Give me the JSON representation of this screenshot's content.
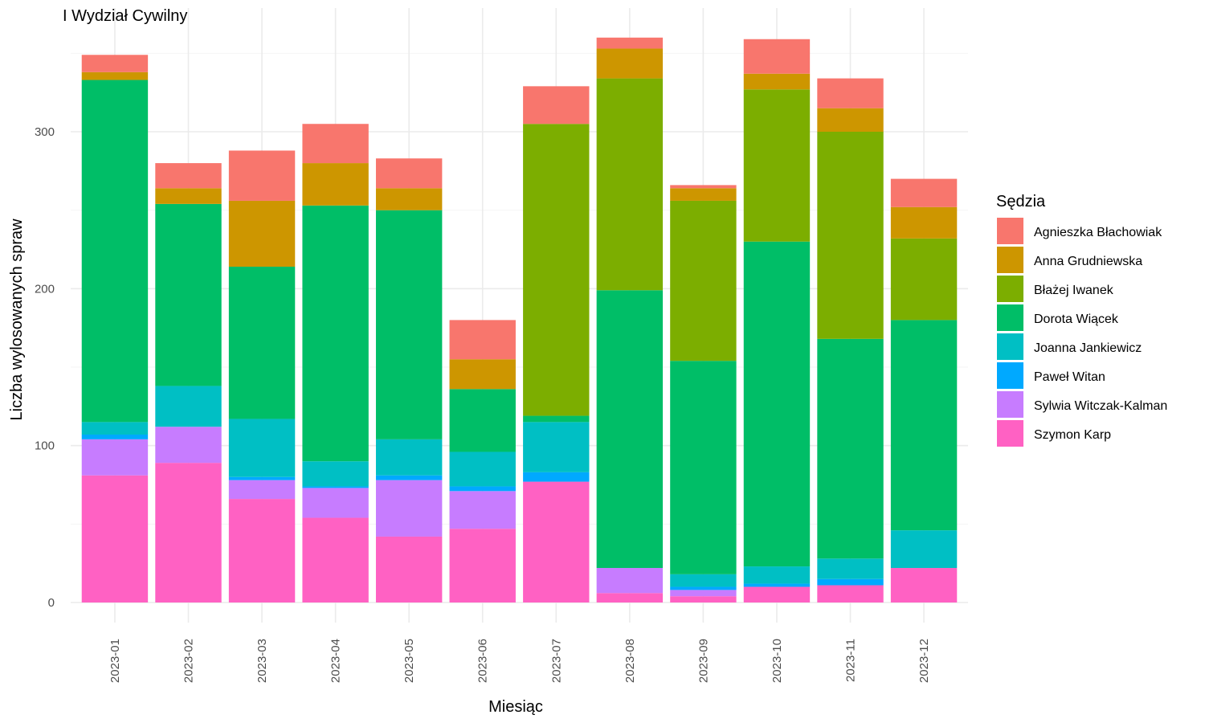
{
  "chart_data": {
    "type": "bar",
    "stacked": true,
    "title": "I Wydział Cywilny",
    "xlabel": "Miesiąc",
    "ylabel": "Liczba wylosowanych spraw",
    "ylim": [
      -12,
      360
    ],
    "yticks": [
      0,
      100,
      200,
      300
    ],
    "grid": true,
    "legend_title": "Sędzia",
    "legend_position": "right",
    "categories": [
      "2023-01",
      "2023-02",
      "2023-03",
      "2023-04",
      "2023-05",
      "2023-06",
      "2023-07",
      "2023-08",
      "2023-09",
      "2023-10",
      "2023-11",
      "2023-12"
    ],
    "series": [
      {
        "name": "Szymon Karp",
        "color": "#FF61C3",
        "values": [
          81,
          89,
          66,
          54,
          42,
          47,
          77,
          6,
          4,
          10,
          11,
          22
        ]
      },
      {
        "name": "Sylwia Witczak-Kalman",
        "color": "#C77CFF",
        "values": [
          23,
          23,
          12,
          19,
          36,
          24,
          0,
          16,
          4,
          0,
          0,
          0
        ]
      },
      {
        "name": "Paweł Witan",
        "color": "#00A9FF",
        "values": [
          3,
          0,
          2,
          1,
          3,
          3,
          6,
          0,
          2,
          2,
          4,
          0
        ]
      },
      {
        "name": "Joanna Jankiewicz",
        "color": "#00BFC4",
        "values": [
          8,
          26,
          37,
          16,
          23,
          22,
          32,
          0,
          8,
          11,
          13,
          24
        ]
      },
      {
        "name": "Dorota Wiącek",
        "color": "#00BE67",
        "values": [
          218,
          116,
          97,
          163,
          146,
          40,
          4,
          177,
          136,
          207,
          140,
          134
        ]
      },
      {
        "name": "Błażej Iwanek",
        "color": "#7CAE00",
        "values": [
          0,
          0,
          0,
          0,
          0,
          0,
          186,
          135,
          102,
          97,
          132,
          52
        ]
      },
      {
        "name": "Anna Grudniewska",
        "color": "#CD9600",
        "values": [
          5,
          10,
          42,
          27,
          14,
          19,
          0,
          19,
          8,
          10,
          15,
          20
        ]
      },
      {
        "name": "Agnieszka Błachowiak",
        "color": "#F8766D",
        "values": [
          11,
          16,
          32,
          25,
          19,
          25,
          24,
          7,
          2,
          22,
          19,
          18
        ]
      }
    ],
    "legend_order": [
      "Agnieszka Błachowiak",
      "Anna Grudniewska",
      "Błażej Iwanek",
      "Dorota Wiącek",
      "Joanna Jankiewicz",
      "Paweł Witan",
      "Sylwia Witczak-Kalman",
      "Szymon Karp"
    ]
  }
}
